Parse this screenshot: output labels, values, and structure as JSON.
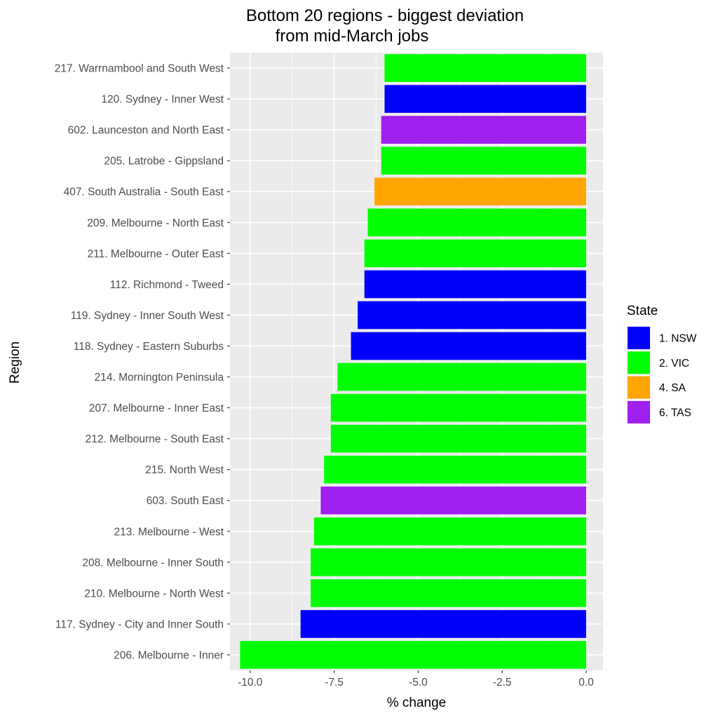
{
  "chart_data": {
    "type": "bar",
    "orientation": "horizontal",
    "title": [
      "Bottom 20 regions - biggest deviation",
      "from mid-March jobs"
    ],
    "xlabel": "% change",
    "ylabel": "Region",
    "xlim": [
      -10.6,
      0.5
    ],
    "x_ticks": [
      -10.0,
      -7.5,
      -5.0,
      -2.5,
      0.0
    ],
    "x_tick_labels": [
      "-10.0",
      "-7.5",
      "-5.0",
      "-2.5",
      "0.0"
    ],
    "grid": true,
    "legend": {
      "title": "State",
      "position": "right",
      "entries": [
        {
          "label": "1. NSW",
          "color": "#0000ff"
        },
        {
          "label": "2. VIC",
          "color": "#00ff00"
        },
        {
          "label": "4. SA",
          "color": "#ffa500"
        },
        {
          "label": "6. TAS",
          "color": "#a020f0"
        }
      ]
    },
    "categories": [
      "217. Warrnambool and South West",
      "120. Sydney - Inner West",
      "602. Launceston and North East",
      "205. Latrobe - Gippsland",
      "407. South Australia - South East",
      "209. Melbourne - North East",
      "211. Melbourne - Outer East",
      "112. Richmond - Tweed",
      "119. Sydney - Inner South West",
      "118. Sydney - Eastern Suburbs",
      "214. Mornington Peninsula",
      "207. Melbourne - Inner East",
      "212. Melbourne - South East",
      "215. North West",
      "603. South East",
      "213. Melbourne - West",
      "208. Melbourne - Inner South",
      "210. Melbourne - North West",
      "117. Sydney - City and Inner South",
      "206. Melbourne - Inner"
    ],
    "values": [
      -6.0,
      -6.0,
      -6.1,
      -6.1,
      -6.3,
      -6.5,
      -6.6,
      -6.6,
      -6.8,
      -7.0,
      -7.4,
      -7.6,
      -7.6,
      -7.8,
      -7.9,
      -8.1,
      -8.2,
      -8.2,
      -8.5,
      -10.3
    ],
    "states": [
      "2. VIC",
      "1. NSW",
      "6. TAS",
      "2. VIC",
      "4. SA",
      "2. VIC",
      "2. VIC",
      "1. NSW",
      "1. NSW",
      "1. NSW",
      "2. VIC",
      "2. VIC",
      "2. VIC",
      "2. VIC",
      "6. TAS",
      "2. VIC",
      "2. VIC",
      "2. VIC",
      "1. NSW",
      "2. VIC"
    ]
  }
}
